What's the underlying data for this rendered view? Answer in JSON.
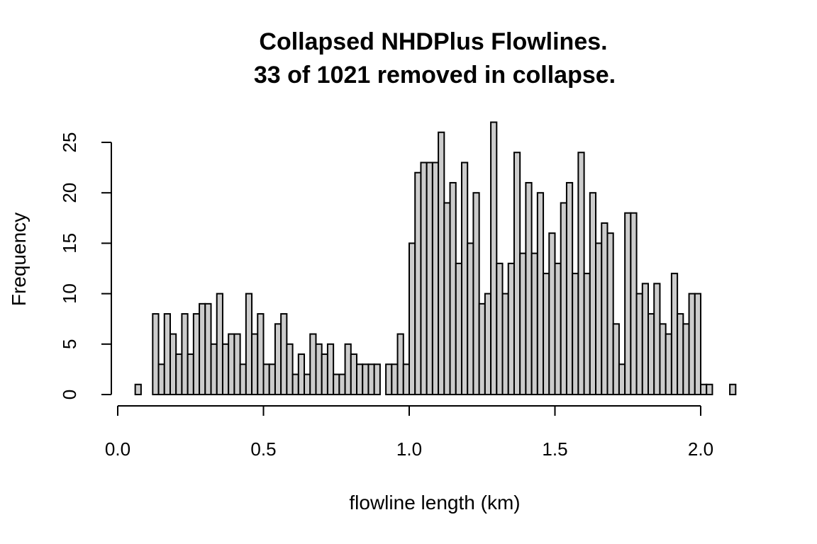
{
  "chart_data": {
    "type": "bar",
    "title": "Collapsed NHDPlus Flowlines.",
    "subtitle": "33 of 1021 removed in collapse.",
    "xlabel": "flowline length (km)",
    "ylabel": "Frequency",
    "bin_width": 0.02,
    "xlim": [
      0.0,
      2.1
    ],
    "ylim": [
      0,
      27
    ],
    "x_ticks": [
      0.0,
      0.5,
      1.0,
      1.5,
      2.0
    ],
    "x_tick_labels": [
      "0.0",
      "0.5",
      "1.0",
      "1.5",
      "2.0"
    ],
    "y_ticks": [
      0,
      5,
      10,
      15,
      20,
      25
    ],
    "y_tick_labels": [
      "0",
      "5",
      "10",
      "15",
      "20",
      "25"
    ],
    "bar_color": "#cccccc",
    "grid": false,
    "legend": "none",
    "bin_starts": [
      0.06,
      0.08,
      0.1,
      0.12,
      0.14,
      0.16,
      0.18,
      0.2,
      0.22,
      0.24,
      0.26,
      0.28,
      0.3,
      0.32,
      0.34,
      0.36,
      0.38,
      0.4,
      0.42,
      0.44,
      0.46,
      0.48,
      0.5,
      0.52,
      0.54,
      0.56,
      0.58,
      0.6,
      0.62,
      0.64,
      0.66,
      0.68,
      0.7,
      0.72,
      0.74,
      0.76,
      0.78,
      0.8,
      0.82,
      0.84,
      0.86,
      0.88,
      0.9,
      0.92,
      0.94,
      0.96,
      0.98,
      1.0,
      1.02,
      1.04,
      1.06,
      1.08,
      1.1,
      1.12,
      1.14,
      1.16,
      1.18,
      1.2,
      1.22,
      1.24,
      1.26,
      1.28,
      1.3,
      1.32,
      1.34,
      1.36,
      1.38,
      1.4,
      1.42,
      1.44,
      1.46,
      1.48,
      1.5,
      1.52,
      1.54,
      1.56,
      1.58,
      1.6,
      1.62,
      1.64,
      1.66,
      1.68,
      1.7,
      1.72,
      1.74,
      1.76,
      1.78,
      1.8,
      1.82,
      1.84,
      1.86,
      1.88,
      1.9,
      1.92,
      1.94,
      1.96,
      1.98,
      2.0,
      2.02,
      2.04,
      2.06,
      2.08,
      2.1
    ],
    "values": [
      1,
      0,
      0,
      8,
      3,
      8,
      6,
      4,
      8,
      4,
      8,
      9,
      9,
      5,
      10,
      5,
      6,
      6,
      3,
      10,
      6,
      8,
      3,
      3,
      7,
      8,
      5,
      2,
      4,
      2,
      6,
      5,
      4,
      5,
      2,
      2,
      5,
      4,
      3,
      3,
      3,
      3,
      0,
      3,
      3,
      6,
      3,
      15,
      22,
      23,
      23,
      23,
      26,
      19,
      21,
      13,
      23,
      15,
      20,
      9,
      10,
      27,
      13,
      10,
      13,
      24,
      14,
      21,
      14,
      20,
      12,
      16,
      13,
      19,
      21,
      12,
      24,
      12,
      20,
      15,
      17,
      16,
      7,
      3,
      18,
      18,
      10,
      11,
      8,
      11,
      7,
      6,
      12,
      8,
      7,
      10,
      10,
      1,
      1,
      0,
      0,
      0,
      1
    ]
  }
}
